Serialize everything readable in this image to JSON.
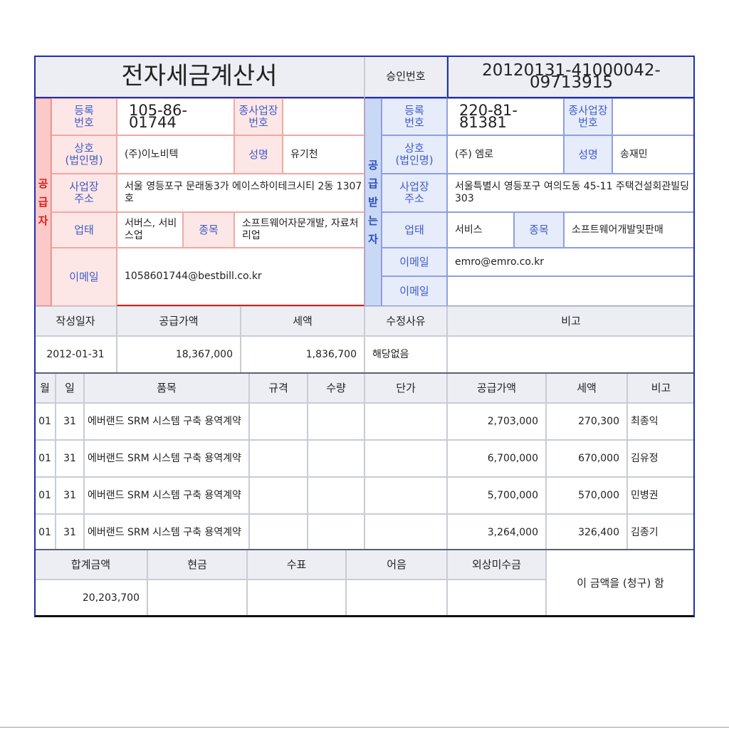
{
  "title": "전자세금계산서",
  "approval": {
    "label": "승인번호",
    "value": "20120131-41000042-09713915"
  },
  "supplier": {
    "side_label": [
      "공",
      "급",
      "자"
    ],
    "reg_label": "등록\n번호",
    "reg_no": "105-86-01744",
    "sub_label": "종사업장\n번호",
    "sub_no": "",
    "name_label": "상호\n(법인명)",
    "name": "(주)이노비텍",
    "rep_label": "성명",
    "rep": "유기천",
    "addr_label": "사업장\n주소",
    "addr": "서울 영등포구 문래동3가 에이스하이테크시티 2동 1307호",
    "type_label": "업태",
    "type": "서버스, 서비스업",
    "item_label": "종목",
    "item": "소프트웨어자문개발, 자료처리업",
    "email_label": "이메일",
    "email": "1058601744@bestbill.co.kr"
  },
  "receiver": {
    "side_label": [
      "공",
      "급",
      "받",
      "는",
      "자"
    ],
    "reg_label": "등록\n번호",
    "reg_no": "220-81-81381",
    "sub_label": "종사업장\n번호",
    "sub_no": "",
    "name_label": "상호\n(법인명)",
    "name": "(주) 엠로",
    "rep_label": "성명",
    "rep": "송재민",
    "addr_label": "사업장\n주소",
    "addr": "서울특별시 영등포구 여의도동 45-11 주택건설회관빌딩 303",
    "type_label": "업태",
    "type": "서비스",
    "item_label": "종목",
    "item": "소프트웨어개발및판매",
    "email_label": "이메일",
    "email": "emro@emro.co.kr",
    "email2_label": "이메일",
    "email2": ""
  },
  "summary": {
    "headers": [
      "작성일자",
      "공급가액",
      "세액",
      "수정사유",
      "비고"
    ],
    "values": [
      "2012-01-31",
      "18,367,000",
      "1,836,700",
      "해당없음",
      ""
    ]
  },
  "items": {
    "headers": [
      "월",
      "일",
      "품목",
      "규격",
      "수량",
      "단가",
      "공급가액",
      "세액",
      "비고"
    ],
    "rows": [
      [
        "01",
        "31",
        "에버랜드 SRM 시스템 구축 용역계약",
        "",
        "",
        "",
        "2,703,000",
        "270,300",
        "최종익"
      ],
      [
        "01",
        "31",
        "에버랜드 SRM 시스템 구축 용역계약",
        "",
        "",
        "",
        "6,700,000",
        "670,000",
        "김유정"
      ],
      [
        "01",
        "31",
        "에버랜드 SRM 시스템 구축 용역계약",
        "",
        "",
        "",
        "5,700,000",
        "570,000",
        "민병권"
      ],
      [
        "01",
        "31",
        "에버랜드 SRM 시스템 구축 용역계약",
        "",
        "",
        "",
        "3,264,000",
        "326,400",
        "김종기"
      ]
    ]
  },
  "totals": {
    "headers": [
      "합계금액",
      "현금",
      "수표",
      "어음",
      "외상미수금"
    ],
    "values": [
      "20,203,700",
      "",
      "",
      "",
      ""
    ],
    "claim": "이 금액을 (청구) 함"
  }
}
